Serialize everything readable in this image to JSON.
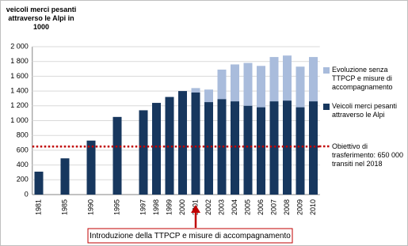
{
  "chart_data": {
    "type": "bar",
    "title": "veicoli merci pesanti attraverso le Alpi in 1000",
    "categories": [
      "1981",
      null,
      "1985",
      null,
      "1990",
      null,
      "1995",
      null,
      "1997",
      "1998",
      "1999",
      "2000",
      "2001",
      "2002",
      "2003",
      "2004",
      "2005",
      "2006",
      "2007",
      "2008",
      "2009",
      "2010"
    ],
    "series": [
      {
        "name": "Evoluzione senza TTPCP e misure di accompagnamento",
        "color": "#a9bcdc",
        "values": [
          null,
          null,
          null,
          null,
          null,
          null,
          null,
          null,
          null,
          null,
          null,
          null,
          1440,
          1420,
          1690,
          1760,
          1780,
          1740,
          1860,
          1880,
          1730,
          1860
        ]
      },
      {
        "name": "Veicoli merci pesanti attraverso le Alpi",
        "color": "#17375e",
        "values": [
          310,
          null,
          490,
          null,
          730,
          null,
          1050,
          null,
          1140,
          1240,
          1320,
          1400,
          1380,
          1250,
          1290,
          1260,
          1200,
          1180,
          1260,
          1270,
          1180,
          1260
        ]
      }
    ],
    "target": {
      "name": "Obiettivo di trasferimento: 650 000 transiti nel 2018",
      "value": 650,
      "color": "#c00000"
    },
    "annotation": "Introduzione della TTPCP e misure di accompagnamento",
    "ylim": [
      0,
      2000
    ],
    "yticks": [
      0,
      200,
      400,
      600,
      800,
      {
        "value": 1000,
        "label": "1 000"
      },
      {
        "value": 1200,
        "label": "1 200"
      },
      {
        "value": 1400,
        "label": "1 400"
      },
      {
        "value": 1600,
        "label": "1 600"
      },
      {
        "value": 1800,
        "label": "1 800"
      },
      {
        "value": 2000,
        "label": "2 000"
      }
    ],
    "grid": true
  }
}
